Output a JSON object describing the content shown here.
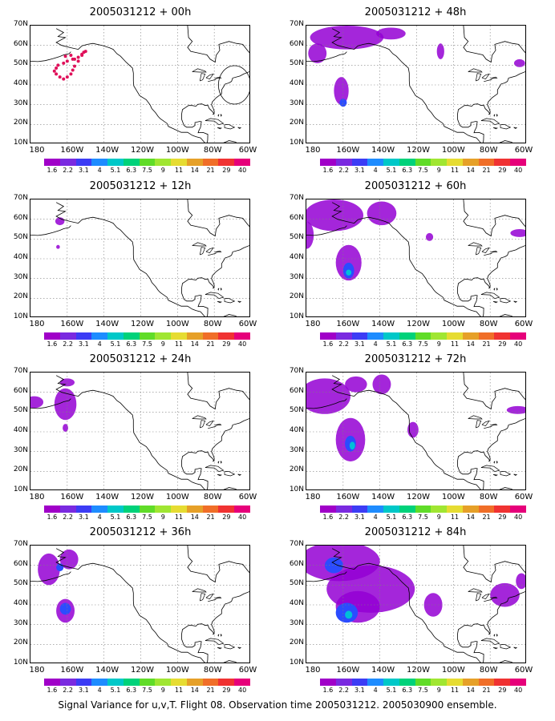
{
  "footer": "Signal Variance for u,v,T. Flight 08. Observation time 2005031212. 2005030900 ensemble.",
  "colors": {
    "purple": "#9400d3",
    "light_purple": "#a23ee0",
    "blue": "#2b4cff",
    "cyan": "#00bfd8",
    "coast": "#000000",
    "grid": "#7f7f7f",
    "obs_dots": "#e0105a"
  },
  "colorbar": {
    "labels": [
      "1.6",
      "2.2",
      "3.1",
      "4",
      "5.1",
      "6.3",
      "7.5",
      "9",
      "11",
      "14",
      "21",
      "29",
      "40"
    ],
    "colors": [
      "#a000c8",
      "#7a2ae0",
      "#3c3cf5",
      "#1e8cff",
      "#00c8c8",
      "#00d27a",
      "#60dc28",
      "#a0e632",
      "#e6dc32",
      "#e6a028",
      "#f06e28",
      "#f03232",
      "#e6007a"
    ]
  },
  "axes": {
    "y_ticks": [
      "70N",
      "60N",
      "50N",
      "40N",
      "30N",
      "20N",
      "10N"
    ],
    "x_ticks": [
      "180",
      "160W",
      "140W",
      "120W",
      "100W",
      "80W",
      "60W"
    ]
  },
  "panels": [
    {
      "title": "2005031212 + 00h"
    },
    {
      "title": "2005031212 + 48h"
    },
    {
      "title": "2005031212 + 12h"
    },
    {
      "title": "2005031212 + 60h"
    },
    {
      "title": "2005031212 + 24h"
    },
    {
      "title": "2005031212 + 72h"
    },
    {
      "title": "2005031212 + 36h"
    },
    {
      "title": "2005031212 + 84h"
    }
  ],
  "chart_data": {
    "type": "heatmap",
    "variable": "Signal Variance for u,v,T",
    "ylim": [
      10,
      70
    ],
    "xlim": [
      -180,
      -60
    ],
    "levels": [
      1.6,
      2.2,
      3.1,
      4,
      5.1,
      6.3,
      7.5,
      9,
      11,
      14,
      21,
      29,
      40
    ],
    "grid": true,
    "lead_times_h": [
      0,
      48,
      12,
      60,
      24,
      72,
      36,
      84
    ]
  }
}
